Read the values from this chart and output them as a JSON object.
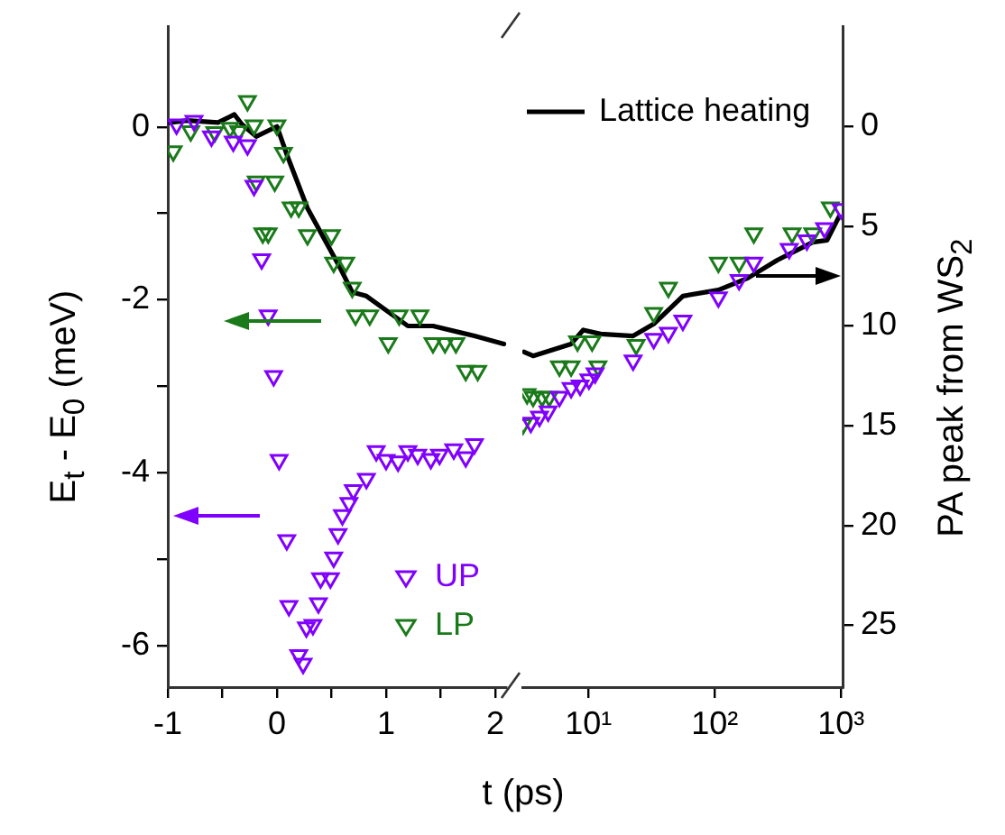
{
  "chart_data": [
    {
      "type": "scatter",
      "xlabel": "t (ps)",
      "ylabel": "E$_{t}$ - E$_{0}$ (meV)",
      "marker": "triangle",
      "legend": "bottom",
      "xlim": [
        -1,
        2.1
      ],
      "xticks": [
        -1,
        {
          "value": -0.5,
          "label": null
        },
        0,
        {
          "value": 0.5,
          "label": null
        },
        1,
        {
          "value": 1.5,
          "label": null
        },
        2
      ],
      "ylim": [
        -6.48,
        1.16
      ],
      "yticks": [
        -6,
        {
          "value": -5,
          "label": null
        },
        -4,
        {
          "value": -3,
          "label": null
        },
        -2,
        {
          "value": -1,
          "label": null
        },
        0
      ],
      "y2lim": [
        28.1,
        -5
      ],
      "series": [
        {
          "name": "UP",
          "color": "#8000ff",
          "x": [
            -0.92,
            -0.76,
            -0.6,
            -0.4,
            -0.27,
            -0.21,
            -0.14,
            -0.08,
            -0.03,
            0.02,
            0.09,
            0.11,
            0.2,
            0.24,
            0.27,
            0.33,
            0.38,
            0.4,
            0.49,
            0.52,
            0.56,
            0.6,
            0.66,
            0.7,
            0.82,
            0.91,
            1.0,
            1.11,
            1.2,
            1.29,
            1.41,
            1.49,
            1.62,
            1.73,
            1.81
          ],
          "values": [
            0.03,
            0.07,
            -0.11,
            -0.17,
            -0.21,
            -0.68,
            -1.53,
            -2.18,
            -2.88,
            -3.85,
            -4.78,
            -5.54,
            -6.11,
            -6.21,
            -5.79,
            -5.76,
            -5.51,
            -5.22,
            -5.22,
            -4.98,
            -4.71,
            -4.49,
            -4.35,
            -4.2,
            -4.07,
            -3.75,
            -3.85,
            -3.87,
            -3.75,
            -3.79,
            -3.84,
            -3.79,
            -3.73,
            -3.82,
            -3.67
          ]
        },
        {
          "name": "LP",
          "color": "#1a7a1a",
          "x": [
            -0.95,
            -0.79,
            -0.57,
            -0.43,
            -0.35,
            -0.27,
            -0.21,
            -0.19,
            -0.13,
            -0.08,
            -0.02,
            0.0,
            0.06,
            0.13,
            0.2,
            0.28,
            0.5,
            0.52,
            0.63,
            0.69,
            0.72,
            0.85,
            1.02,
            1.12,
            1.31,
            1.43,
            1.54,
            1.64,
            1.73,
            1.84
          ],
          "values": [
            -0.28,
            -0.05,
            -0.06,
            -0.01,
            -0.05,
            0.3,
            0.02,
            -0.63,
            -1.23,
            -1.23,
            -0.63,
            0.02,
            -0.3,
            -0.93,
            -0.93,
            -1.25,
            -1.25,
            -1.57,
            -1.57,
            -1.86,
            -2.18,
            -2.18,
            -2.5,
            -2.18,
            -2.18,
            -2.5,
            -2.5,
            -2.5,
            -2.82,
            -2.82
          ]
        },
        {
          "type": "line",
          "axis": "y2",
          "marker": "none",
          "color": "#000000",
          "x": [
            -0.98,
            -0.82,
            -0.54,
            -0.39,
            -0.32,
            -0.19,
            0.0,
            0.09,
            0.28,
            0.41,
            0.58,
            0.69,
            0.82,
            1.2,
            1.43,
            1.81,
            2.08
          ],
          "values": [
            -0.2,
            -0.3,
            -0.2,
            -0.6,
            -0.1,
            0.5,
            0.0,
            1.4,
            4.1,
            5.4,
            7.1,
            8.3,
            8.5,
            10.0,
            10.0,
            10.5,
            10.9
          ]
        }
      ]
    },
    {
      "type": "scatter",
      "y2label": "PA peak from WS$_{2}$",
      "marker": "triangle",
      "legend": "top right",
      "log": "x",
      "xlim": [
        3,
        1030
      ],
      "xticks": [
        {
          "value": 10,
          "label": "10¹"
        },
        {
          "value": 100,
          "label": "10²"
        },
        {
          "value": 1000,
          "label": "10³"
        }
      ],
      "ylim": [
        -6.48,
        1.16
      ],
      "y2lim": [
        28.1,
        -5
      ],
      "y2ticks": [
        0,
        5,
        10,
        15,
        20,
        25
      ],
      "series": [
        {
          "color": "#8000ff",
          "x": [
            3.5,
            4.1,
            4.8,
            5.9,
            7.3,
            8.6,
            10.1,
            11.3,
            22.6,
            32.9,
            43,
            56,
            107,
            156,
            204,
            389,
            537,
            741,
            1000
          ],
          "values": [
            -3.42,
            -3.35,
            -3.29,
            -3.12,
            -3.02,
            -2.99,
            -2.92,
            -2.85,
            -2.7,
            -2.45,
            -2.38,
            -2.24,
            -1.97,
            -1.77,
            -1.57,
            -1.41,
            -1.31,
            -1.17,
            -0.95
          ]
        },
        {
          "color": "#1a7a1a",
          "x": [
            3.04,
            3.27,
            3.65,
            4.3,
            4.9,
            5.9,
            7.3,
            8.2,
            10.7,
            11.9,
            23.9,
            32.9,
            43,
            107,
            156,
            204,
            410,
            597,
            824
          ],
          "values": [
            -3.44,
            -3.09,
            -3.12,
            -3.12,
            -3.12,
            -2.77,
            -2.77,
            -2.48,
            -2.48,
            -2.77,
            -2.52,
            -2.15,
            -1.86,
            -1.57,
            -1.57,
            -1.23,
            -1.23,
            -1.23,
            -0.93
          ]
        },
        {
          "name": "Lattice heating",
          "type": "line",
          "axis": "y2",
          "marker": "none",
          "color": "#000000",
          "x": [
            3.1,
            3.65,
            7.3,
            9.1,
            12.5,
            22.6,
            32.9,
            56,
            107,
            183,
            313,
            597,
            776,
            968
          ],
          "values": [
            11.3,
            11.5,
            10.9,
            10.2,
            10.4,
            10.5,
            9.9,
            8.5,
            8.2,
            7.6,
            6.7,
            5.8,
            5.7,
            4.5
          ]
        }
      ]
    }
  ]
}
